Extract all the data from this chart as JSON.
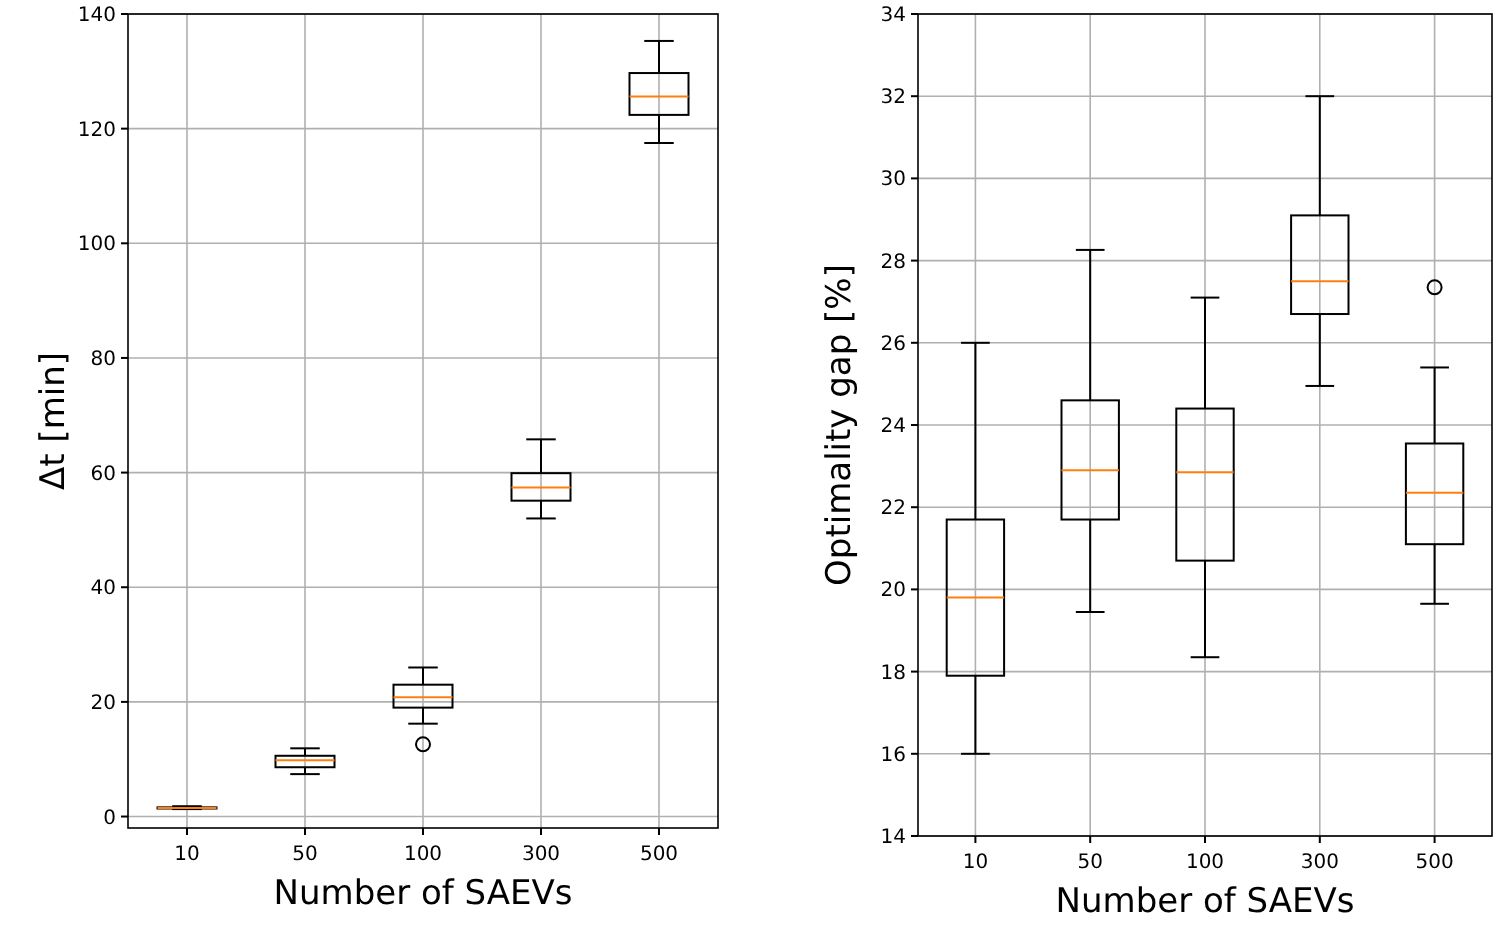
{
  "chart_data": [
    {
      "type": "box",
      "categories": [
        "10",
        "50",
        "100",
        "300",
        "500"
      ],
      "xlabel": "Number of SAEVs",
      "ylabel": "Δt  [min]",
      "ylim": [
        -2,
        140
      ],
      "yticks": [
        0,
        20,
        40,
        60,
        80,
        100,
        120,
        140
      ],
      "grid": true,
      "color": "#000000",
      "boxes": [
        {
          "low": 1.3,
          "q1": 1.4,
          "median": 1.5,
          "q3": 1.6,
          "high": 1.8
        },
        {
          "low": 7.4,
          "q1": 8.6,
          "median": 9.8,
          "q3": 10.6,
          "high": 11.9
        },
        {
          "low": 16.2,
          "q1": 19.0,
          "median": 20.8,
          "q3": 23.0,
          "high": 26.0,
          "outliers": [
            12.6
          ]
        },
        {
          "low": 52.0,
          "q1": 55.1,
          "median": 57.4,
          "q3": 59.9,
          "high": 65.8
        },
        {
          "low": 117.5,
          "q1": 122.4,
          "median": 125.6,
          "q3": 129.7,
          "high": 135.3
        }
      ]
    },
    {
      "type": "box",
      "categories": [
        "10",
        "50",
        "100",
        "300",
        "500"
      ],
      "xlabel": "Number of SAEVs",
      "ylabel": "Optimality gap [%]",
      "ylim": [
        14,
        34
      ],
      "yticks": [
        14,
        16,
        18,
        20,
        22,
        24,
        26,
        28,
        30,
        32,
        34
      ],
      "grid": true,
      "color": "#000000",
      "boxes": [
        {
          "low": 16.0,
          "q1": 17.9,
          "median": 19.8,
          "q3": 21.7,
          "high": 26.0
        },
        {
          "low": 19.45,
          "q1": 21.7,
          "median": 22.9,
          "q3": 24.6,
          "high": 28.26
        },
        {
          "low": 18.35,
          "q1": 20.7,
          "median": 22.85,
          "q3": 24.4,
          "high": 27.1
        },
        {
          "low": 24.95,
          "q1": 26.7,
          "median": 27.5,
          "q3": 29.1,
          "high": 32.0
        },
        {
          "low": 19.65,
          "q1": 21.1,
          "median": 22.35,
          "q3": 23.55,
          "high": 25.4,
          "outliers": [
            27.35
          ]
        }
      ]
    }
  ]
}
